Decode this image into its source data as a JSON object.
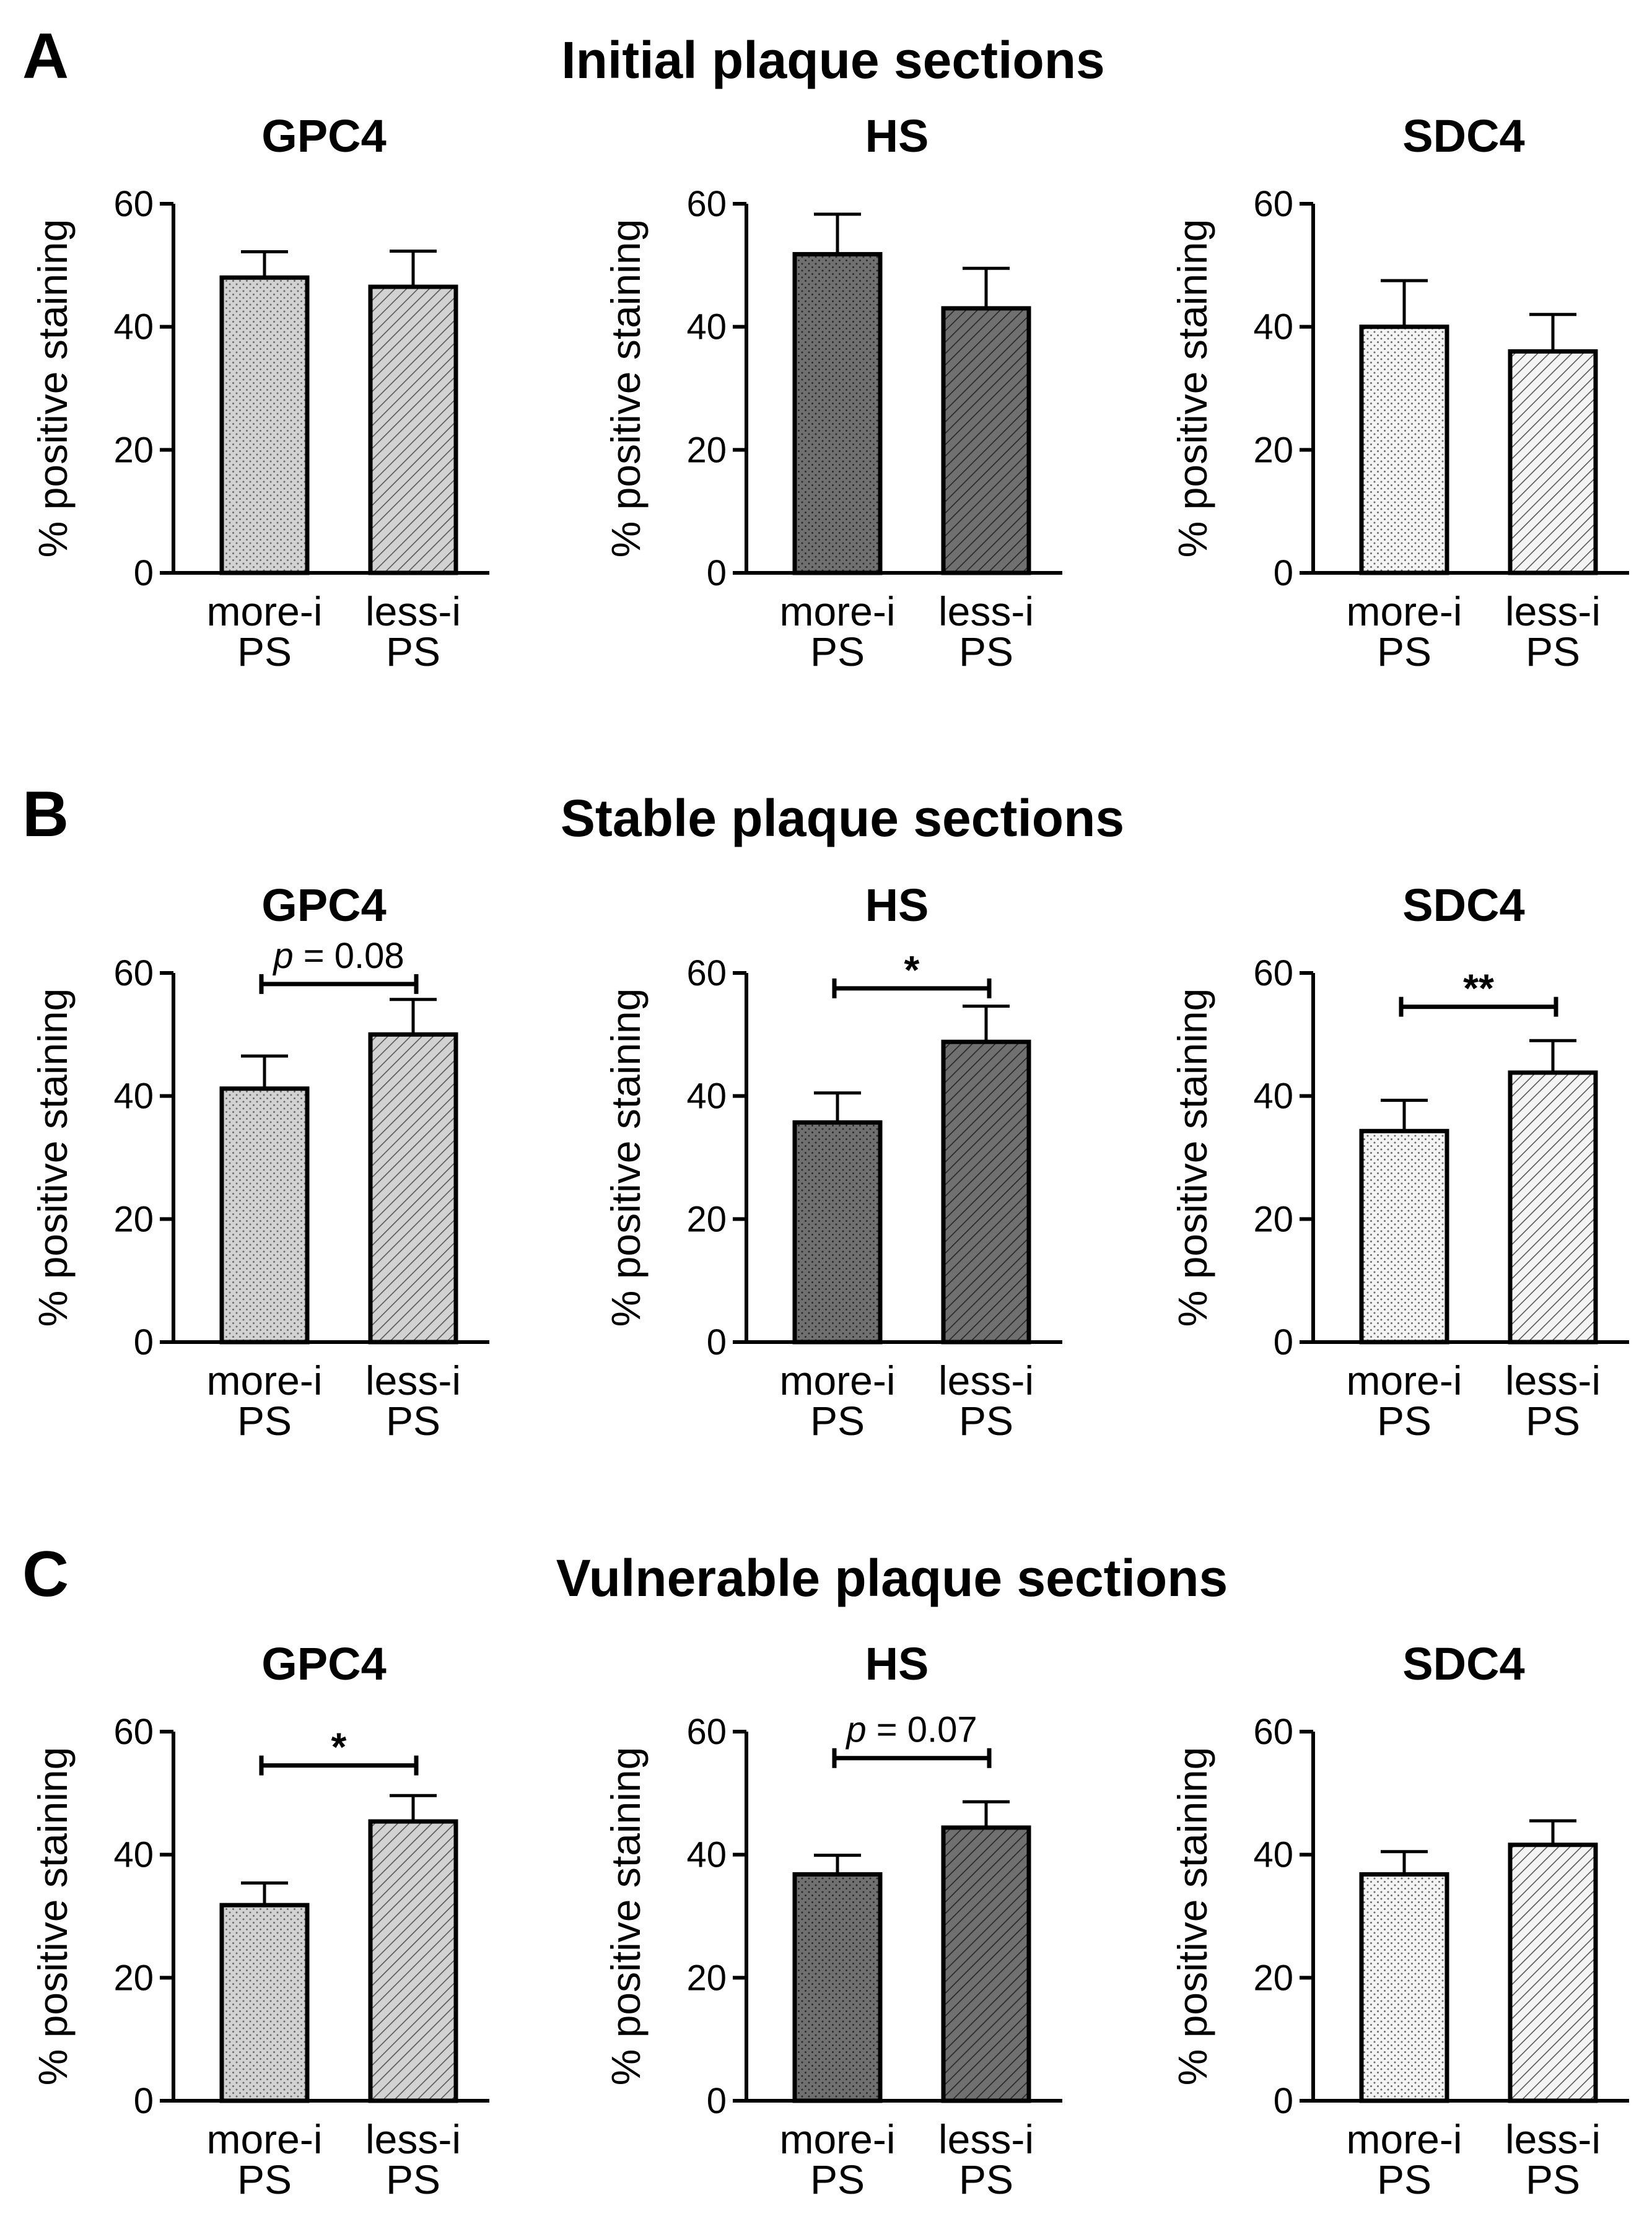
{
  "panels": [
    {
      "letter": "A",
      "title": "Initial plaque sections"
    },
    {
      "letter": "B",
      "title": "Stable plaque sections"
    },
    {
      "letter": "C",
      "title": "Vulnerable plaque sections"
    }
  ],
  "colors": {
    "GPC4_fill": "#d2d2d2",
    "HS_fill": "#707070",
    "SDC4_fill": "#f4f4f4",
    "axis": "#000000"
  },
  "chart_data": [
    {
      "type": "bar",
      "panel": "A",
      "title": "GPC4",
      "ylabel": "% positive staining",
      "ylim": [
        0,
        60
      ],
      "yticks": [
        0,
        20,
        40,
        60
      ],
      "categories": [
        [
          "more-i",
          "PS"
        ],
        [
          "less-i",
          "PS"
        ]
      ],
      "values": [
        48,
        46.5
      ],
      "errors": [
        4.2,
        5.8
      ],
      "patterns": [
        "dots",
        "stripes"
      ],
      "fill": "GPC4_fill",
      "significance": null
    },
    {
      "type": "bar",
      "panel": "A",
      "title": "HS",
      "ylabel": "% positive staining",
      "ylim": [
        0,
        60
      ],
      "yticks": [
        0,
        20,
        40,
        60
      ],
      "categories": [
        [
          "more-i",
          "PS"
        ],
        [
          "less-i",
          "PS"
        ]
      ],
      "values": [
        51.8,
        43
      ],
      "errors": [
        6.5,
        6.5
      ],
      "patterns": [
        "dots",
        "stripes"
      ],
      "fill": "HS_fill",
      "significance": null
    },
    {
      "type": "bar",
      "panel": "A",
      "title": "SDC4",
      "ylabel": "% positive staining",
      "ylim": [
        0,
        60
      ],
      "yticks": [
        0,
        20,
        40,
        60
      ],
      "categories": [
        [
          "more-i",
          "PS"
        ],
        [
          "less-i",
          "PS"
        ]
      ],
      "values": [
        40,
        36
      ],
      "errors": [
        7.5,
        6
      ],
      "patterns": [
        "dots",
        "stripes"
      ],
      "fill": "SDC4_fill",
      "significance": null
    },
    {
      "type": "bar",
      "panel": "B",
      "title": "GPC4",
      "ylabel": "% positive staining",
      "ylim": [
        0,
        60
      ],
      "yticks": [
        0,
        20,
        40,
        60
      ],
      "categories": [
        [
          "more-i",
          "PS"
        ],
        [
          "less-i",
          "PS"
        ]
      ],
      "values": [
        41.2,
        50
      ],
      "errors": [
        5.3,
        5.7
      ],
      "patterns": [
        "dots",
        "stripes"
      ],
      "fill": "GPC4_fill",
      "significance": {
        "label_prefix": "p",
        "label_rest": " = 0.08",
        "bracket_y": 58.2
      }
    },
    {
      "type": "bar",
      "panel": "B",
      "title": "HS",
      "ylabel": "% positive staining",
      "ylim": [
        0,
        60
      ],
      "yticks": [
        0,
        20,
        40,
        60
      ],
      "categories": [
        [
          "more-i",
          "PS"
        ],
        [
          "less-i",
          "PS"
        ]
      ],
      "values": [
        35.7,
        48.8
      ],
      "errors": [
        4.8,
        5.8
      ],
      "patterns": [
        "dots",
        "stripes"
      ],
      "fill": "HS_fill",
      "significance": {
        "label": "*",
        "bracket_y": 57.5
      }
    },
    {
      "type": "bar",
      "panel": "B",
      "title": "SDC4",
      "ylabel": "% positive staining",
      "ylim": [
        0,
        60
      ],
      "yticks": [
        0,
        20,
        40,
        60
      ],
      "categories": [
        [
          "more-i",
          "PS"
        ],
        [
          "less-i",
          "PS"
        ]
      ],
      "values": [
        34.3,
        43.8
      ],
      "errors": [
        5,
        5.2
      ],
      "patterns": [
        "dots",
        "stripes"
      ],
      "fill": "SDC4_fill",
      "significance": {
        "label": "**",
        "bracket_y": 54.5
      }
    },
    {
      "type": "bar",
      "panel": "C",
      "title": "GPC4",
      "ylabel": "% positive staining",
      "ylim": [
        0,
        60
      ],
      "yticks": [
        0,
        20,
        40,
        60
      ],
      "categories": [
        [
          "more-i",
          "PS"
        ],
        [
          "less-i",
          "PS"
        ]
      ],
      "values": [
        31.8,
        45.4
      ],
      "errors": [
        3.6,
        4.2
      ],
      "patterns": [
        "dots",
        "stripes"
      ],
      "fill": "GPC4_fill",
      "significance": {
        "label": "*",
        "bracket_y": 54.5
      }
    },
    {
      "type": "bar",
      "panel": "C",
      "title": "HS",
      "ylabel": "% positive staining",
      "ylim": [
        0,
        60
      ],
      "yticks": [
        0,
        20,
        40,
        60
      ],
      "categories": [
        [
          "more-i",
          "PS"
        ],
        [
          "less-i",
          "PS"
        ]
      ],
      "values": [
        36.8,
        44.4
      ],
      "errors": [
        3.1,
        4.2
      ],
      "patterns": [
        "dots",
        "stripes"
      ],
      "fill": "HS_fill",
      "significance": {
        "label_prefix": "p",
        "label_rest": " = 0.07",
        "bracket_y": 55.7
      }
    },
    {
      "type": "bar",
      "panel": "C",
      "title": "SDC4",
      "ylabel": "% positive staining",
      "ylim": [
        0,
        60
      ],
      "yticks": [
        0,
        20,
        40,
        60
      ],
      "categories": [
        [
          "more-i",
          "PS"
        ],
        [
          "less-i",
          "PS"
        ]
      ],
      "values": [
        36.8,
        41.6
      ],
      "errors": [
        3.7,
        3.9
      ],
      "patterns": [
        "dots",
        "stripes"
      ],
      "fill": "SDC4_fill",
      "significance": null
    }
  ]
}
